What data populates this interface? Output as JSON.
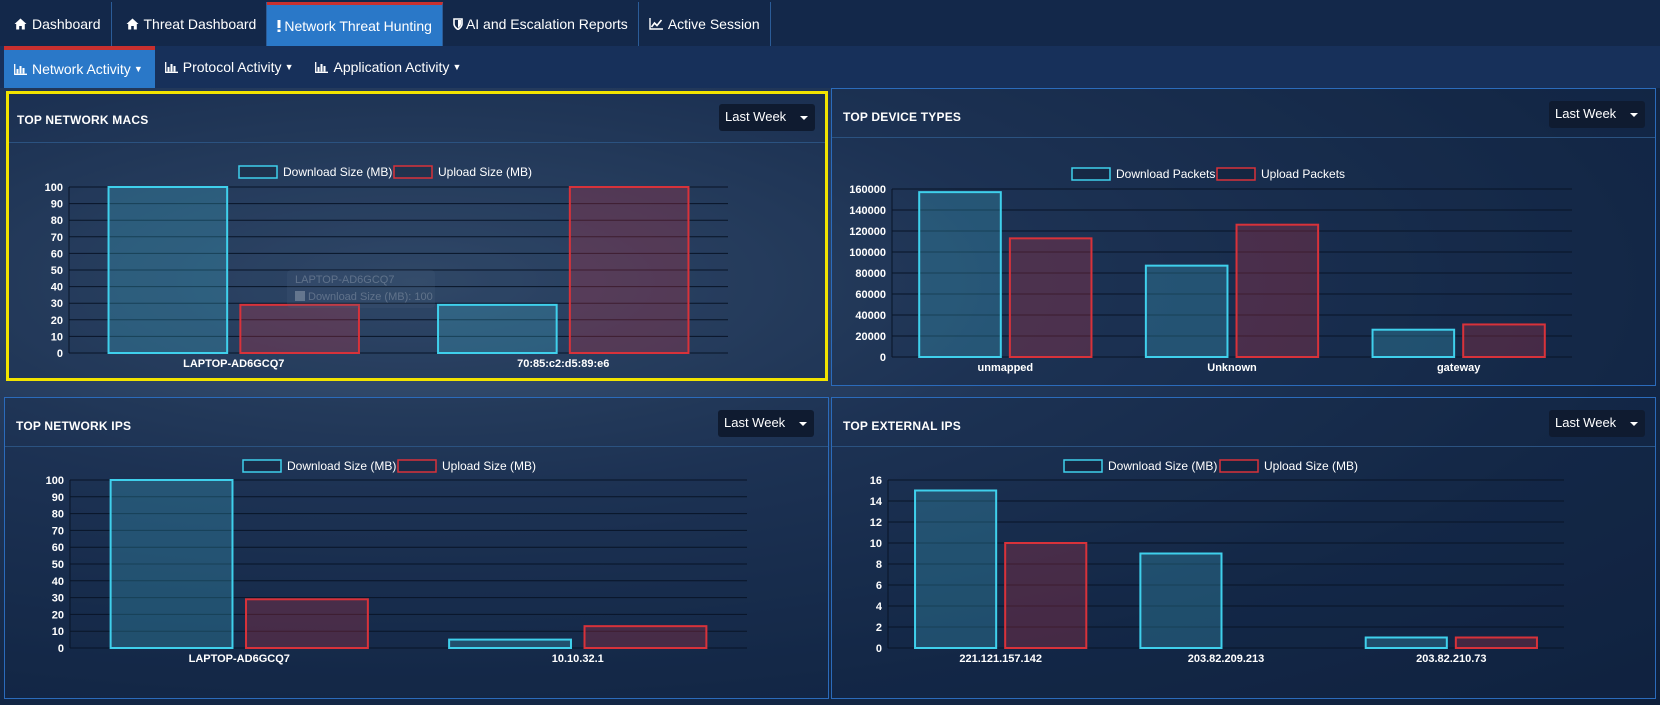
{
  "top_tabs": [
    {
      "label": "Dashboard",
      "icon": "home-icon"
    },
    {
      "label": "Threat Dashboard",
      "icon": "home-icon"
    },
    {
      "label": "Network Threat Hunting",
      "icon": "exclamation-icon",
      "active": true
    },
    {
      "label": "AI and Escalation Reports",
      "icon": "shield-icon"
    },
    {
      "label": "Active Session",
      "icon": "line-chart-icon"
    }
  ],
  "sub_tabs": [
    {
      "label": "Network Activity",
      "icon": "bar-chart-icon",
      "active": true
    },
    {
      "label": "Protocol Activity",
      "icon": "bar-chart-icon"
    },
    {
      "label": "Application Activity",
      "icon": "bar-chart-icon"
    }
  ],
  "colors": {
    "download": "#3fd0ec",
    "upload": "#d8323a",
    "grid": "#061224",
    "accent": "#2a78c8",
    "highlight": "#f2e400"
  },
  "panels": {
    "macs": {
      "title": "TOP NETWORK MACS",
      "range": "Last Week"
    },
    "devices": {
      "title": "TOP DEVICE TYPES",
      "range": "Last Week"
    },
    "ips": {
      "title": "TOP NETWORK IPS",
      "range": "Last Week"
    },
    "external": {
      "title": "TOP EXTERNAL IPS",
      "range": "Last Week"
    }
  },
  "tooltip": {
    "title": "LAPTOP-AD6GCQ7",
    "line": "Download Size (MB): 100"
  },
  "chart_data": [
    {
      "type": "bar",
      "title": "TOP NETWORK MACS",
      "categories": [
        "LAPTOP-AD6GCQ7",
        "70:85:c2:d5:89:e6"
      ],
      "series": [
        {
          "name": "Download Size (MB)",
          "values": [
            100,
            29
          ]
        },
        {
          "name": "Upload Size (MB)",
          "values": [
            29,
            100
          ]
        }
      ],
      "ylim": [
        0,
        100
      ],
      "yticks": [
        0,
        10,
        20,
        30,
        40,
        50,
        60,
        70,
        80,
        90,
        100
      ],
      "legend": "top",
      "grid": true
    },
    {
      "type": "bar",
      "title": "TOP DEVICE TYPES",
      "categories": [
        "unmapped",
        "Unknown",
        "gateway"
      ],
      "series": [
        {
          "name": "Download Packets",
          "values": [
            157000,
            87000,
            26000
          ]
        },
        {
          "name": "Upload Packets",
          "values": [
            113000,
            126000,
            31000
          ]
        }
      ],
      "ylim": [
        0,
        160000
      ],
      "yticks": [
        0,
        20000,
        40000,
        60000,
        80000,
        100000,
        120000,
        140000,
        160000
      ],
      "legend": "top",
      "grid": true
    },
    {
      "type": "bar",
      "title": "TOP NETWORK IPS",
      "categories": [
        "LAPTOP-AD6GCQ7",
        "10.10.32.1"
      ],
      "series": [
        {
          "name": "Download Size (MB)",
          "values": [
            100,
            5
          ]
        },
        {
          "name": "Upload Size (MB)",
          "values": [
            29,
            13
          ]
        }
      ],
      "ylim": [
        0,
        100
      ],
      "yticks": [
        0,
        10,
        20,
        30,
        40,
        50,
        60,
        70,
        80,
        90,
        100
      ],
      "legend": "top",
      "grid": true
    },
    {
      "type": "bar",
      "title": "TOP EXTERNAL IPS",
      "categories": [
        "221.121.157.142",
        "203.82.209.213",
        "203.82.210.73"
      ],
      "series": [
        {
          "name": "Download Size (MB)",
          "values": [
            15,
            9,
            1
          ]
        },
        {
          "name": "Upload Size (MB)",
          "values": [
            10,
            0,
            1
          ]
        }
      ],
      "ylim": [
        0,
        16
      ],
      "yticks": [
        0,
        2,
        4,
        6,
        8,
        10,
        12,
        14,
        16
      ],
      "legend": "top",
      "grid": true
    }
  ]
}
